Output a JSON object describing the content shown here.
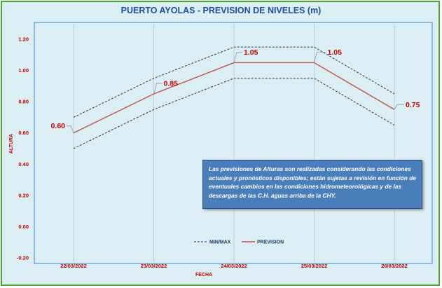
{
  "chart_data": {
    "type": "line",
    "title": "PUERTO AYOLAS - PREVISION DE NIVELES (m)",
    "xlabel": "FECHA",
    "ylabel": "ALTURA",
    "categories": [
      "22/03/2022",
      "23/03/2022",
      "24/03/2022",
      "25/03/2022",
      "26/03/2022"
    ],
    "ylim": [
      -0.2,
      1.2
    ],
    "yticks": [
      -0.2,
      0.0,
      0.2,
      0.4,
      0.6,
      0.8,
      1.0,
      1.2
    ],
    "ytick_labels": [
      "-0.20",
      "0.00",
      "0.20",
      "0.40",
      "0.60",
      "0.80",
      "1.00",
      "1.20"
    ],
    "grid": "vertical",
    "series": [
      {
        "name": "PREVISION",
        "values": [
          0.6,
          0.85,
          1.05,
          1.05,
          0.75
        ],
        "color": "#c0504d",
        "style": "solid"
      },
      {
        "name": "MIN",
        "values": [
          0.5,
          0.75,
          0.95,
          0.95,
          0.65
        ],
        "color": "#1f3864",
        "style": "dashed"
      },
      {
        "name": "MAX",
        "values": [
          0.7,
          0.95,
          1.15,
          1.15,
          0.85
        ],
        "color": "#1f3864",
        "style": "dashed"
      }
    ],
    "data_labels": [
      "0.60",
      "0.85",
      "1.05",
      "1.05",
      "0.75"
    ],
    "legend": [
      {
        "label": "MIN/MAX",
        "style": "dashed",
        "color": "#1f3864"
      },
      {
        "label": "PREVISION",
        "style": "solid",
        "color": "#c0504d"
      }
    ],
    "legend_position": "bottom-center"
  },
  "note": {
    "text": "Las previsiones de Alturas son realizadas considerando las condiciones actuales y pronósticos disponibles; están sujetas a revisión en función de eventuales cambios en las condiciones hidrometeorológicas y de las descargas de las C.H. aguas arriba de la CHY."
  }
}
